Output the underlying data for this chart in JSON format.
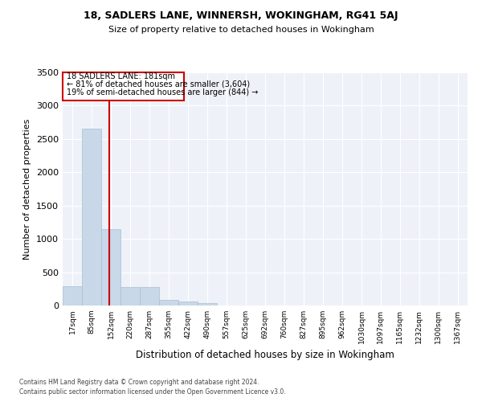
{
  "title1": "18, SADLERS LANE, WINNERSH, WOKINGHAM, RG41 5AJ",
  "title2": "Size of property relative to detached houses in Wokingham",
  "xlabel": "Distribution of detached houses by size in Wokingham",
  "ylabel": "Number of detached properties",
  "footer1": "Contains HM Land Registry data © Crown copyright and database right 2024.",
  "footer2": "Contains public sector information licensed under the Open Government Licence v3.0.",
  "annotation_title": "18 SADLERS LANE: 181sqm",
  "annotation_line2": "← 81% of detached houses are smaller (3,604)",
  "annotation_line3": "19% of semi-detached houses are larger (844) →",
  "property_size": 181,
  "bar_color": "#c8d8e8",
  "bar_edge_color": "#a8bfd0",
  "vline_color": "#cc0000",
  "annotation_box_color": "#cc0000",
  "bg_color": "#eef2f8",
  "categories": [
    "17sqm",
    "85sqm",
    "152sqm",
    "220sqm",
    "287sqm",
    "355sqm",
    "422sqm",
    "490sqm",
    "557sqm",
    "625sqm",
    "692sqm",
    "760sqm",
    "827sqm",
    "895sqm",
    "962sqm",
    "1030sqm",
    "1097sqm",
    "1165sqm",
    "1232sqm",
    "1300sqm",
    "1367sqm"
  ],
  "bin_edges": [
    17,
    85,
    152,
    220,
    287,
    355,
    422,
    490,
    557,
    625,
    692,
    760,
    827,
    895,
    962,
    1030,
    1097,
    1165,
    1232,
    1300,
    1367,
    1435
  ],
  "values": [
    285,
    2660,
    1150,
    280,
    275,
    90,
    55,
    35,
    0,
    0,
    0,
    0,
    0,
    0,
    0,
    0,
    0,
    0,
    0,
    0,
    0
  ],
  "ylim": [
    0,
    3500
  ],
  "yticks": [
    0,
    500,
    1000,
    1500,
    2000,
    2500,
    3000,
    3500
  ]
}
